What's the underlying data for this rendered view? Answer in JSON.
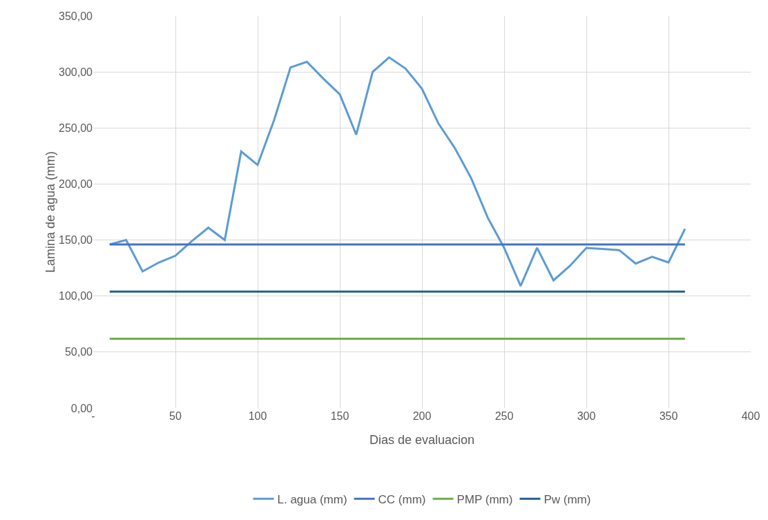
{
  "chart_data": {
    "type": "line",
    "xlabel": "Dias de evaluacion",
    "ylabel": "Lamina de agua (mm)",
    "x": [
      10,
      20,
      30,
      40,
      50,
      60,
      70,
      80,
      90,
      100,
      110,
      120,
      130,
      140,
      150,
      160,
      170,
      180,
      190,
      200,
      210,
      220,
      230,
      240,
      250,
      260,
      270,
      280,
      290,
      300,
      310,
      320,
      330,
      340,
      350,
      360
    ],
    "series": [
      {
        "name": "L. agua (mm)",
        "color": "#5b9bd5",
        "values": [
          146,
          150,
          122,
          130,
          136,
          149,
          161,
          150,
          229,
          217,
          257,
          304,
          309,
          294,
          280,
          244,
          300,
          313,
          303,
          285,
          254,
          232,
          205,
          170,
          143,
          109,
          143,
          114,
          127,
          143,
          142,
          141,
          129,
          135,
          130,
          160
        ]
      },
      {
        "name": "CC (mm)",
        "color": "#4472c4",
        "values": [
          146,
          146,
          146,
          146,
          146,
          146,
          146,
          146,
          146,
          146,
          146,
          146,
          146,
          146,
          146,
          146,
          146,
          146,
          146,
          146,
          146,
          146,
          146,
          146,
          146,
          146,
          146,
          146,
          146,
          146,
          146,
          146,
          146,
          146,
          146,
          146
        ]
      },
      {
        "name": "PMP (mm)",
        "color": "#70ad47",
        "values": [
          62,
          62,
          62,
          62,
          62,
          62,
          62,
          62,
          62,
          62,
          62,
          62,
          62,
          62,
          62,
          62,
          62,
          62,
          62,
          62,
          62,
          62,
          62,
          62,
          62,
          62,
          62,
          62,
          62,
          62,
          62,
          62,
          62,
          62,
          62,
          62
        ]
      },
      {
        "name": "Pw (mm)",
        "color": "#255e91",
        "values": [
          104,
          104,
          104,
          104,
          104,
          104,
          104,
          104,
          104,
          104,
          104,
          104,
          104,
          104,
          104,
          104,
          104,
          104,
          104,
          104,
          104,
          104,
          104,
          104,
          104,
          104,
          104,
          104,
          104,
          104,
          104,
          104,
          104,
          104,
          104,
          104
        ]
      }
    ],
    "xlim": [
      0,
      400
    ],
    "xticks": [
      {
        "value": 0,
        "label": "-"
      },
      50,
      100,
      150,
      200,
      250,
      300,
      350,
      400
    ],
    "ylim": [
      0,
      350
    ],
    "yticks": [
      {
        "value": 0,
        "label": "0,00"
      },
      {
        "value": 50,
        "label": "50,00"
      },
      {
        "value": 100,
        "label": "100,00"
      },
      {
        "value": 150,
        "label": "150,00"
      },
      {
        "value": 200,
        "label": "200,00"
      },
      {
        "value": 250,
        "label": "250,00"
      },
      {
        "value": 300,
        "label": "300,00"
      },
      {
        "value": 350,
        "label": "350,00"
      }
    ],
    "grid": true,
    "legend": "bottom",
    "marker": "none",
    "line_style": "solid"
  }
}
